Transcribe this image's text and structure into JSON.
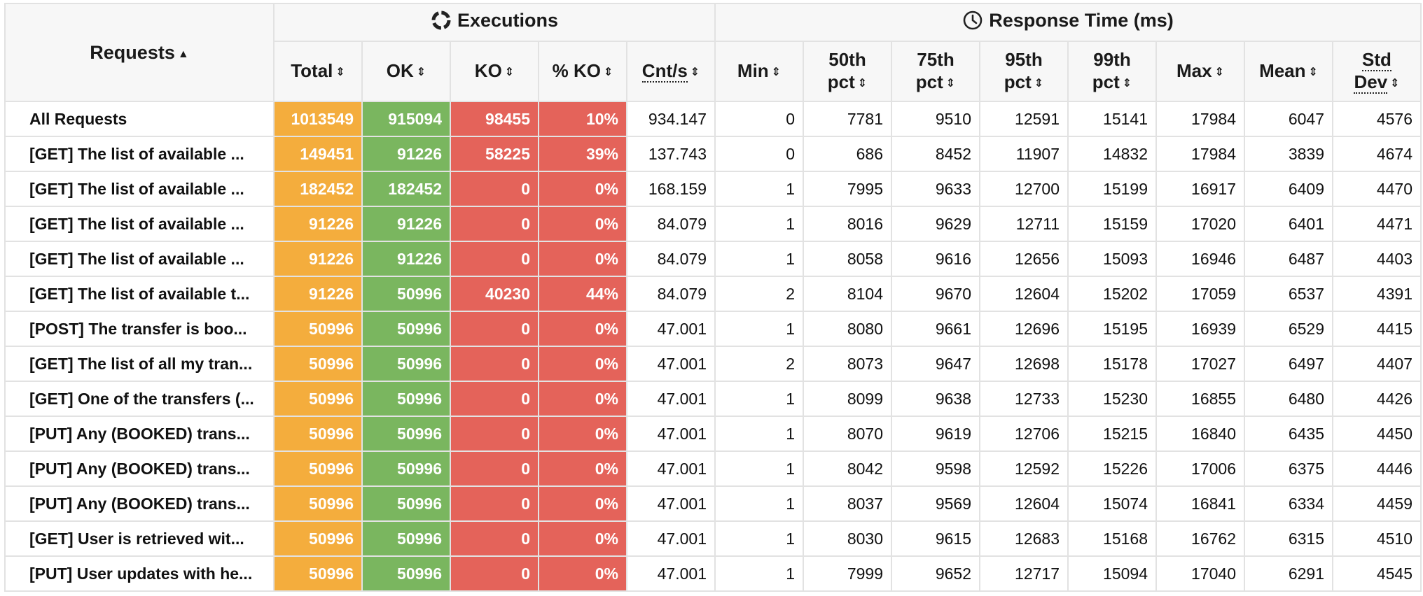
{
  "header": {
    "requests_label": "Requests",
    "requests_sort": "▲",
    "executions_label": "Executions",
    "response_time_label": "Response Time (ms)",
    "sort_icon": "⇕",
    "columns": {
      "total": "Total",
      "ok": "OK",
      "ko": "KO",
      "pct_ko": "% KO",
      "cnt_s": "Cnt/s",
      "min": "Min",
      "p50_top": "50th",
      "p50_bottom": "pct",
      "p75_top": "75th",
      "p75_bottom": "pct",
      "p95_top": "95th",
      "p95_bottom": "pct",
      "p99_top": "99th",
      "p99_bottom": "pct",
      "max": "Max",
      "mean": "Mean",
      "std_top": "Std",
      "std_bottom": "Dev"
    }
  },
  "colors": {
    "total": "#f4ad3d",
    "ok": "#7ab65f",
    "ko": "#e4635a",
    "header_bg": "#f7f7f7"
  },
  "icons": {
    "executions": "refresh-icon",
    "response_time": "clock-icon",
    "sort": "sort-arrows-icon"
  },
  "rows": [
    {
      "name": "All Requests",
      "total": "1013549",
      "ok": "915094",
      "ko": "98455",
      "pct_ko": "10%",
      "cnt_s": "934.147",
      "min": "0",
      "p50": "7781",
      "p75": "9510",
      "p95": "12591",
      "p99": "15141",
      "max": "17984",
      "mean": "6047",
      "std": "4576"
    },
    {
      "name": "[GET] The list of available ...",
      "total": "149451",
      "ok": "91226",
      "ko": "58225",
      "pct_ko": "39%",
      "cnt_s": "137.743",
      "min": "0",
      "p50": "686",
      "p75": "8452",
      "p95": "11907",
      "p99": "14832",
      "max": "17984",
      "mean": "3839",
      "std": "4674"
    },
    {
      "name": "[GET] The list of available ...",
      "total": "182452",
      "ok": "182452",
      "ko": "0",
      "pct_ko": "0%",
      "cnt_s": "168.159",
      "min": "1",
      "p50": "7995",
      "p75": "9633",
      "p95": "12700",
      "p99": "15199",
      "max": "16917",
      "mean": "6409",
      "std": "4470"
    },
    {
      "name": "[GET] The list of available ...",
      "total": "91226",
      "ok": "91226",
      "ko": "0",
      "pct_ko": "0%",
      "cnt_s": "84.079",
      "min": "1",
      "p50": "8016",
      "p75": "9629",
      "p95": "12711",
      "p99": "15159",
      "max": "17020",
      "mean": "6401",
      "std": "4471"
    },
    {
      "name": "[GET] The list of available ...",
      "total": "91226",
      "ok": "91226",
      "ko": "0",
      "pct_ko": "0%",
      "cnt_s": "84.079",
      "min": "1",
      "p50": "8058",
      "p75": "9616",
      "p95": "12656",
      "p99": "15093",
      "max": "16946",
      "mean": "6487",
      "std": "4403"
    },
    {
      "name": "[GET] The list of available t...",
      "total": "91226",
      "ok": "50996",
      "ko": "40230",
      "pct_ko": "44%",
      "cnt_s": "84.079",
      "min": "2",
      "p50": "8104",
      "p75": "9670",
      "p95": "12604",
      "p99": "15202",
      "max": "17059",
      "mean": "6537",
      "std": "4391"
    },
    {
      "name": "[POST] The transfer is boo...",
      "total": "50996",
      "ok": "50996",
      "ko": "0",
      "pct_ko": "0%",
      "cnt_s": "47.001",
      "min": "1",
      "p50": "8080",
      "p75": "9661",
      "p95": "12696",
      "p99": "15195",
      "max": "16939",
      "mean": "6529",
      "std": "4415"
    },
    {
      "name": "[GET] The list of all my tran...",
      "total": "50996",
      "ok": "50996",
      "ko": "0",
      "pct_ko": "0%",
      "cnt_s": "47.001",
      "min": "2",
      "p50": "8073",
      "p75": "9647",
      "p95": "12698",
      "p99": "15178",
      "max": "17027",
      "mean": "6497",
      "std": "4407"
    },
    {
      "name": "[GET] One of the transfers (...",
      "total": "50996",
      "ok": "50996",
      "ko": "0",
      "pct_ko": "0%",
      "cnt_s": "47.001",
      "min": "1",
      "p50": "8099",
      "p75": "9638",
      "p95": "12733",
      "p99": "15230",
      "max": "16855",
      "mean": "6480",
      "std": "4426"
    },
    {
      "name": "[PUT] Any (BOOKED) trans...",
      "total": "50996",
      "ok": "50996",
      "ko": "0",
      "pct_ko": "0%",
      "cnt_s": "47.001",
      "min": "1",
      "p50": "8070",
      "p75": "9619",
      "p95": "12706",
      "p99": "15215",
      "max": "16840",
      "mean": "6435",
      "std": "4450"
    },
    {
      "name": "[PUT] Any (BOOKED) trans...",
      "total": "50996",
      "ok": "50996",
      "ko": "0",
      "pct_ko": "0%",
      "cnt_s": "47.001",
      "min": "1",
      "p50": "8042",
      "p75": "9598",
      "p95": "12592",
      "p99": "15226",
      "max": "17006",
      "mean": "6375",
      "std": "4446"
    },
    {
      "name": "[PUT] Any (BOOKED) trans...",
      "total": "50996",
      "ok": "50996",
      "ko": "0",
      "pct_ko": "0%",
      "cnt_s": "47.001",
      "min": "1",
      "p50": "8037",
      "p75": "9569",
      "p95": "12604",
      "p99": "15074",
      "max": "16841",
      "mean": "6334",
      "std": "4459"
    },
    {
      "name": "[GET] User is retrieved wit...",
      "total": "50996",
      "ok": "50996",
      "ko": "0",
      "pct_ko": "0%",
      "cnt_s": "47.001",
      "min": "1",
      "p50": "8030",
      "p75": "9615",
      "p95": "12683",
      "p99": "15168",
      "max": "16762",
      "mean": "6315",
      "std": "4510"
    },
    {
      "name": "[PUT] User updates with he...",
      "total": "50996",
      "ok": "50996",
      "ko": "0",
      "pct_ko": "0%",
      "cnt_s": "47.001",
      "min": "1",
      "p50": "7999",
      "p75": "9652",
      "p95": "12717",
      "p99": "15094",
      "max": "17040",
      "mean": "6291",
      "std": "4545"
    }
  ]
}
